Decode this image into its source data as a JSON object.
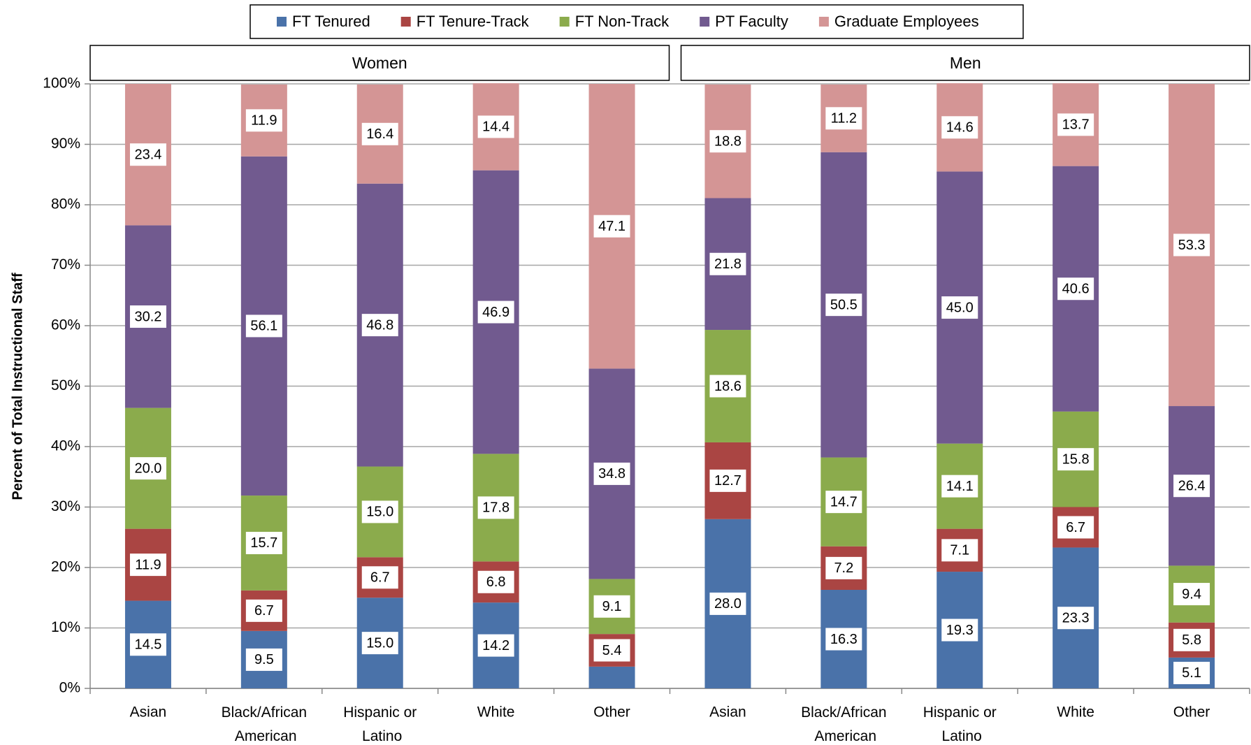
{
  "chart_data": {
    "type": "stacked_bar",
    "ylabel": "Percent of Total Instructional Staff",
    "panels": [
      "Women",
      "Men"
    ],
    "categories": [
      "Asian",
      "Black/African American",
      "Hispanic or Latino",
      "White",
      "Other",
      "Asian",
      "Black/African American",
      "Hispanic or Latino",
      "White",
      "Other"
    ],
    "ylim": [
      0,
      100
    ],
    "yticks": [
      {
        "value": 0,
        "label": "0%"
      },
      {
        "value": 10,
        "label": "10%"
      },
      {
        "value": 20,
        "label": "20%"
      },
      {
        "value": 30,
        "label": "30%"
      },
      {
        "value": 40,
        "label": "40%"
      },
      {
        "value": 50,
        "label": "50%"
      },
      {
        "value": 60,
        "label": "60%"
      },
      {
        "value": 70,
        "label": "70%"
      },
      {
        "value": 80,
        "label": "80%"
      },
      {
        "value": 90,
        "label": "90%"
      },
      {
        "value": 100,
        "label": "100%"
      }
    ],
    "grid": true,
    "legend": "top",
    "series": [
      {
        "name": "FT Tenured",
        "color": "#4a72a9",
        "values": [
          14.5,
          9.5,
          15.0,
          14.2,
          3.6,
          28.0,
          16.3,
          19.3,
          23.3,
          5.1
        ],
        "value_labels": [
          "14.5",
          "9.5",
          "15.0",
          "14.2",
          null,
          "28.0",
          "16.3",
          "19.3",
          "23.3",
          "5.1"
        ]
      },
      {
        "name": "FT Tenure-Track",
        "color": "#aa4543",
        "values": [
          11.9,
          6.7,
          6.7,
          6.8,
          5.4,
          12.7,
          7.2,
          7.1,
          6.7,
          5.8
        ],
        "value_labels": [
          "11.9",
          "6.7",
          "6.7",
          "6.8",
          "5.4",
          "12.7",
          "7.2",
          "7.1",
          "6.7",
          "5.8"
        ]
      },
      {
        "name": "FT Non-Track",
        "color": "#8bab4c",
        "values": [
          20.0,
          15.7,
          15.0,
          17.8,
          9.1,
          18.6,
          14.7,
          14.1,
          15.8,
          9.4
        ],
        "value_labels": [
          "20.0",
          "15.7",
          "15.0",
          "17.8",
          "9.1",
          "18.6",
          "14.7",
          "14.1",
          "15.8",
          "9.4"
        ]
      },
      {
        "name": "PT Faculty",
        "color": "#715a8f",
        "values": [
          30.2,
          56.1,
          46.8,
          46.9,
          34.8,
          21.8,
          50.5,
          45.0,
          40.6,
          26.4
        ],
        "value_labels": [
          "30.2",
          "56.1",
          "46.8",
          "46.9",
          "34.8",
          "21.8",
          "50.5",
          "45.0",
          "40.6",
          "26.4"
        ]
      },
      {
        "name": "Graduate Employees",
        "color": "#d49595",
        "values": [
          23.4,
          11.9,
          16.4,
          14.4,
          47.1,
          18.8,
          11.2,
          14.6,
          13.7,
          53.3
        ],
        "value_labels": [
          "23.4",
          "11.9",
          "16.4",
          "14.4",
          "47.1",
          "18.8",
          "11.2",
          "14.6",
          "13.7",
          "53.3"
        ]
      }
    ]
  }
}
